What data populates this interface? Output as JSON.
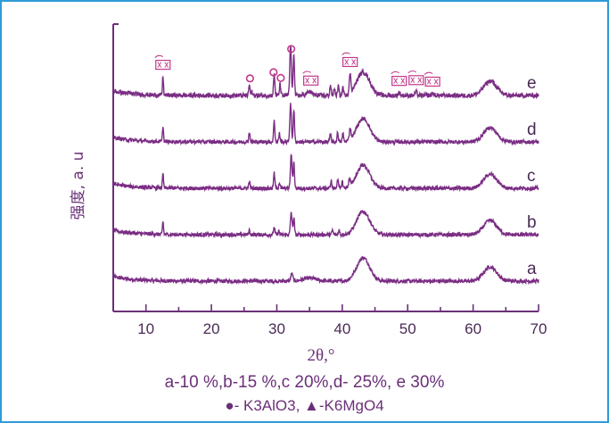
{
  "chart_data": {
    "type": "line",
    "xlabel": "2θ,°",
    "ylabel": "强度, a. u",
    "xlim": [
      5,
      70
    ],
    "xticks": [
      10,
      20,
      30,
      40,
      50,
      60,
      70
    ],
    "grid": false,
    "colors": {
      "line": "#7b2d84",
      "axis": "#6b2f78",
      "marker": "#c2378a"
    },
    "background_peaks": [
      {
        "x": 43.2,
        "h": 0.62,
        "w": 1.0
      },
      {
        "x": 62.6,
        "h": 0.38,
        "w": 1.0
      }
    ],
    "series": [
      {
        "name": "a",
        "offset": 0,
        "noise": 0.05,
        "peaks": [
          {
            "x": 32.3,
            "h": 0.2,
            "w": 0.15
          },
          {
            "x": 35.0,
            "h": 0.08,
            "w": 1.0
          }
        ]
      },
      {
        "name": "b",
        "offset": 1,
        "noise": 0.05,
        "peaks": [
          {
            "x": 12.6,
            "h": 0.35,
            "w": 0.08
          },
          {
            "x": 25.8,
            "h": 0.12,
            "w": 0.1
          },
          {
            "x": 29.6,
            "h": 0.2,
            "w": 0.1
          },
          {
            "x": 30.3,
            "h": 0.1,
            "w": 0.1
          },
          {
            "x": 32.2,
            "h": 0.6,
            "w": 0.12
          },
          {
            "x": 32.6,
            "h": 0.45,
            "w": 0.1
          },
          {
            "x": 38.5,
            "h": 0.12,
            "w": 0.1
          },
          {
            "x": 39.5,
            "h": 0.12,
            "w": 0.1
          }
        ]
      },
      {
        "name": "c",
        "offset": 2,
        "noise": 0.05,
        "peaks": [
          {
            "x": 12.6,
            "h": 0.38,
            "w": 0.08
          },
          {
            "x": 25.8,
            "h": 0.18,
            "w": 0.1
          },
          {
            "x": 29.6,
            "h": 0.4,
            "w": 0.1
          },
          {
            "x": 30.4,
            "h": 0.15,
            "w": 0.1
          },
          {
            "x": 32.2,
            "h": 0.9,
            "w": 0.12
          },
          {
            "x": 32.6,
            "h": 0.7,
            "w": 0.1
          },
          {
            "x": 38.3,
            "h": 0.2,
            "w": 0.1
          },
          {
            "x": 39.3,
            "h": 0.25,
            "w": 0.1
          },
          {
            "x": 40.0,
            "h": 0.18,
            "w": 0.1
          },
          {
            "x": 41.1,
            "h": 0.2,
            "w": 0.12
          }
        ]
      },
      {
        "name": "d",
        "offset": 3,
        "noise": 0.05,
        "peaks": [
          {
            "x": 12.6,
            "h": 0.42,
            "w": 0.08
          },
          {
            "x": 25.8,
            "h": 0.25,
            "w": 0.1
          },
          {
            "x": 29.6,
            "h": 0.55,
            "w": 0.1
          },
          {
            "x": 30.4,
            "h": 0.22,
            "w": 0.1
          },
          {
            "x": 32.1,
            "h": 1.0,
            "w": 0.12
          },
          {
            "x": 32.6,
            "h": 0.85,
            "w": 0.1
          },
          {
            "x": 38.2,
            "h": 0.2,
            "w": 0.1
          },
          {
            "x": 39.3,
            "h": 0.25,
            "w": 0.1
          },
          {
            "x": 40.1,
            "h": 0.22,
            "w": 0.1
          },
          {
            "x": 41.2,
            "h": 0.3,
            "w": 0.12
          }
        ]
      },
      {
        "name": "e",
        "offset": 4,
        "noise": 0.06,
        "peaks": [
          {
            "x": 12.6,
            "h": 0.5,
            "w": 0.08
          },
          {
            "x": 25.8,
            "h": 0.28,
            "w": 0.1
          },
          {
            "x": 26.2,
            "h": 0.1,
            "w": 0.1
          },
          {
            "x": 29.6,
            "h": 0.55,
            "w": 0.1
          },
          {
            "x": 30.5,
            "h": 0.3,
            "w": 0.1
          },
          {
            "x": 32.1,
            "h": 1.35,
            "w": 0.12
          },
          {
            "x": 32.6,
            "h": 1.15,
            "w": 0.1
          },
          {
            "x": 35.0,
            "h": 0.1,
            "w": 0.4
          },
          {
            "x": 38.2,
            "h": 0.28,
            "w": 0.1
          },
          {
            "x": 38.8,
            "h": 0.2,
            "w": 0.1
          },
          {
            "x": 39.4,
            "h": 0.25,
            "w": 0.1
          },
          {
            "x": 40.1,
            "h": 0.22,
            "w": 0.1
          },
          {
            "x": 41.2,
            "h": 0.5,
            "w": 0.12
          },
          {
            "x": 48.7,
            "h": 0.08,
            "w": 0.15
          },
          {
            "x": 51.3,
            "h": 0.1,
            "w": 0.15
          },
          {
            "x": 53.8,
            "h": 0.06,
            "w": 0.15
          }
        ]
      }
    ],
    "markers": [
      {
        "type": "circle",
        "x": 25.9,
        "series": "e"
      },
      {
        "type": "circle",
        "x": 29.5,
        "series": "e"
      },
      {
        "type": "circle",
        "x": 30.6,
        "series": "e"
      },
      {
        "type": "circle",
        "x": 32.2,
        "series": "e"
      },
      {
        "type": "box",
        "x": 12.6,
        "series": "e"
      },
      {
        "type": "box",
        "x": 35.2,
        "series": "e"
      },
      {
        "type": "box",
        "x": 41.2,
        "series": "e"
      },
      {
        "type": "box",
        "x": 48.7,
        "series": "e"
      },
      {
        "type": "box",
        "x": 51.3,
        "series": "e"
      },
      {
        "type": "box",
        "x": 53.8,
        "series": "e"
      }
    ]
  },
  "caption": {
    "line1": "a-10 %,b-15  %,c  20%,d- 25%, e  30%",
    "line2": "●- K3AlO3,   ▲-K6MgO4"
  }
}
